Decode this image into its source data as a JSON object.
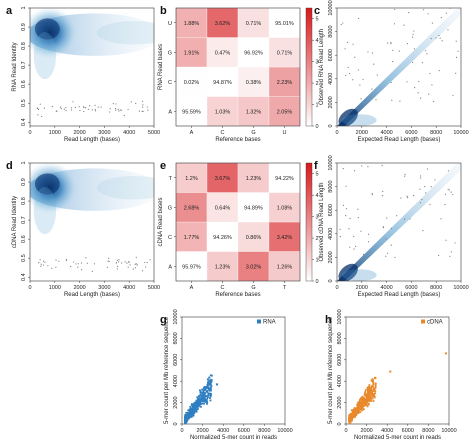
{
  "panels": {
    "a": {
      "label": "a",
      "type": "density",
      "x": {
        "label": "Read Length (bases)",
        "ticks": [
          0,
          1000,
          2000,
          3000,
          4000,
          5000
        ],
        "lim": [
          0,
          5000
        ]
      },
      "y": {
        "label": "RNA Read Identity",
        "ticks": [
          0.4,
          0.5,
          0.6,
          0.7,
          0.8,
          0.9,
          1
        ],
        "lim": [
          0.38,
          1.0
        ]
      },
      "color": "#1f6fb4"
    },
    "d": {
      "label": "d",
      "type": "density",
      "x": {
        "label": "Read Length (bases)",
        "ticks": [
          0,
          1000,
          2000,
          3000,
          4000,
          5000
        ],
        "lim": [
          0,
          5000
        ]
      },
      "y": {
        "label": "cDNA Read Identity",
        "ticks": [
          0.4,
          0.5,
          0.6,
          0.7,
          0.8,
          0.9,
          1
        ],
        "lim": [
          0.38,
          1.0
        ]
      },
      "color": "#1f6fb4"
    },
    "b": {
      "label": "b",
      "type": "heatmap",
      "xlabel": "Reference bases",
      "ylabel": "RNA Read bases",
      "xcats": [
        "A",
        "C",
        "G",
        "U"
      ],
      "ycats": [
        "A",
        "C",
        "G",
        "U"
      ],
      "cells": [
        [
          "95.59%",
          "1.03%",
          "1.32%",
          "2.05%"
        ],
        [
          "0.02%",
          "94.87%",
          "0.38%",
          "2.23%"
        ],
        [
          "1.91%",
          "0.47%",
          "96.92%",
          "0.71%"
        ],
        [
          "1.88%",
          "3.62%",
          "0.71%",
          "95.01%"
        ]
      ],
      "colorbar": {
        "ticks": [
          0,
          1,
          2,
          3,
          4,
          5
        ],
        "lim": [
          0,
          5.5
        ]
      }
    },
    "e": {
      "label": "e",
      "type": "heatmap",
      "xlabel": "Reference bases",
      "ylabel": "cDNA Read bases",
      "xcats": [
        "A",
        "C",
        "G",
        "T"
      ],
      "ycats": [
        "A",
        "C",
        "G",
        "T"
      ],
      "cells": [
        [
          "95.97%",
          "1.23%",
          "3.02%",
          "1.26%"
        ],
        [
          "1.77%",
          "94.26%",
          "0.86%",
          "3.42%"
        ],
        [
          "2.68%",
          "0.64%",
          "94.89%",
          "1.08%"
        ],
        [
          "1.2%",
          "3.67%",
          "1.23%",
          "94.22%"
        ]
      ],
      "colorbar": {
        "ticks": [
          0,
          1,
          2,
          3,
          4,
          5
        ],
        "lim": [
          0,
          5.5
        ]
      }
    },
    "c": {
      "label": "c",
      "type": "density-diag",
      "x": {
        "label": "Expected Read Length (bases)",
        "ticks": [
          0,
          2000,
          4000,
          6000,
          8000,
          10000
        ],
        "lim": [
          0,
          10000
        ]
      },
      "y": {
        "label": "Observed RNA Read Length",
        "ticks": [
          0,
          2000,
          4000,
          6000,
          8000,
          10000
        ],
        "lim": [
          0,
          10000
        ]
      }
    },
    "f": {
      "label": "f",
      "type": "density-diag",
      "x": {
        "label": "Expected Read Length (bases)",
        "ticks": [
          0,
          2000,
          4000,
          6000,
          8000,
          10000
        ],
        "lim": [
          0,
          10000
        ]
      },
      "y": {
        "label": "Observed cDNA Read Length",
        "ticks": [
          0,
          2000,
          4000,
          6000,
          8000,
          10000
        ],
        "lim": [
          0,
          10000
        ]
      }
    },
    "g": {
      "label": "g",
      "type": "scatter",
      "x": {
        "label": "Normalized 5-mer count in reads",
        "ticks": [
          0,
          2000,
          4000,
          6000,
          8000,
          10000
        ],
        "lim": [
          0,
          10000
        ]
      },
      "y": {
        "label": "5-mer count per Mb reference sequence",
        "ticks": [
          0,
          2000,
          4000,
          6000,
          8000,
          10000
        ],
        "lim": [
          0,
          10000
        ]
      },
      "legend": "RNA",
      "color": "#2f7fc1"
    },
    "h": {
      "label": "h",
      "type": "scatter",
      "x": {
        "label": "Normalized 5-mer count in reads",
        "ticks": [
          0,
          2000,
          4000,
          6000,
          8000,
          10000
        ],
        "lim": [
          0,
          10000
        ]
      },
      "y": {
        "label": "5-mer count per Mb reference sequence",
        "ticks": [
          0,
          2000,
          4000,
          6000,
          8000,
          10000
        ],
        "lim": [
          0,
          10000
        ]
      },
      "legend": "cDNA",
      "color": "#e8892b"
    }
  },
  "chart_data": [
    {
      "type": "heatmap",
      "panel": "b",
      "xlabel": "Reference bases",
      "ylabel": "RNA Read bases",
      "x": [
        "A",
        "C",
        "G",
        "U"
      ],
      "y": [
        "A",
        "C",
        "G",
        "U"
      ],
      "values": [
        [
          95.59,
          1.03,
          1.32,
          2.05
        ],
        [
          0.02,
          94.87,
          0.38,
          2.23
        ],
        [
          1.91,
          0.47,
          96.92,
          0.71
        ],
        [
          1.88,
          3.62,
          0.71,
          95.01
        ]
      ]
    },
    {
      "type": "heatmap",
      "panel": "e",
      "xlabel": "Reference bases",
      "ylabel": "cDNA Read bases",
      "x": [
        "A",
        "C",
        "G",
        "T"
      ],
      "y": [
        "A",
        "C",
        "G",
        "T"
      ],
      "values": [
        [
          95.97,
          1.23,
          3.02,
          1.26
        ],
        [
          1.77,
          94.26,
          0.86,
          3.42
        ],
        [
          2.68,
          0.64,
          94.89,
          1.08
        ],
        [
          1.2,
          3.67,
          1.23,
          94.22
        ]
      ]
    },
    {
      "type": "scatter",
      "panel": "a",
      "xlabel": "Read Length (bases)",
      "ylabel": "RNA Read Identity",
      "xlim": [
        0,
        5000
      ],
      "ylim": [
        0.38,
        1.0
      ]
    },
    {
      "type": "scatter",
      "panel": "d",
      "xlabel": "Read Length (bases)",
      "ylabel": "cDNA Read Identity",
      "xlim": [
        0,
        5000
      ],
      "ylim": [
        0.38,
        1.0
      ]
    },
    {
      "type": "scatter",
      "panel": "c",
      "xlabel": "Expected Read Length (bases)",
      "ylabel": "Observed RNA Read Length",
      "xlim": [
        0,
        10000
      ],
      "ylim": [
        0,
        10000
      ]
    },
    {
      "type": "scatter",
      "panel": "f",
      "xlabel": "Expected Read Length (bases)",
      "ylabel": "Observed cDNA Read Length",
      "xlim": [
        0,
        10000
      ],
      "ylim": [
        0,
        10000
      ]
    },
    {
      "type": "scatter",
      "panel": "g",
      "xlabel": "Normalized 5-mer count in reads",
      "ylabel": "5-mer count per Mb reference sequence",
      "series": [
        {
          "name": "RNA"
        }
      ],
      "xlim": [
        0,
        10000
      ],
      "ylim": [
        0,
        10000
      ],
      "legend": "top-right"
    },
    {
      "type": "scatter",
      "panel": "h",
      "xlabel": "Normalized 5-mer count in reads",
      "ylabel": "5-mer count per Mb reference sequence",
      "series": [
        {
          "name": "cDNA"
        }
      ],
      "xlim": [
        0,
        10000
      ],
      "ylim": [
        0,
        10000
      ],
      "legend": "top-right"
    }
  ]
}
